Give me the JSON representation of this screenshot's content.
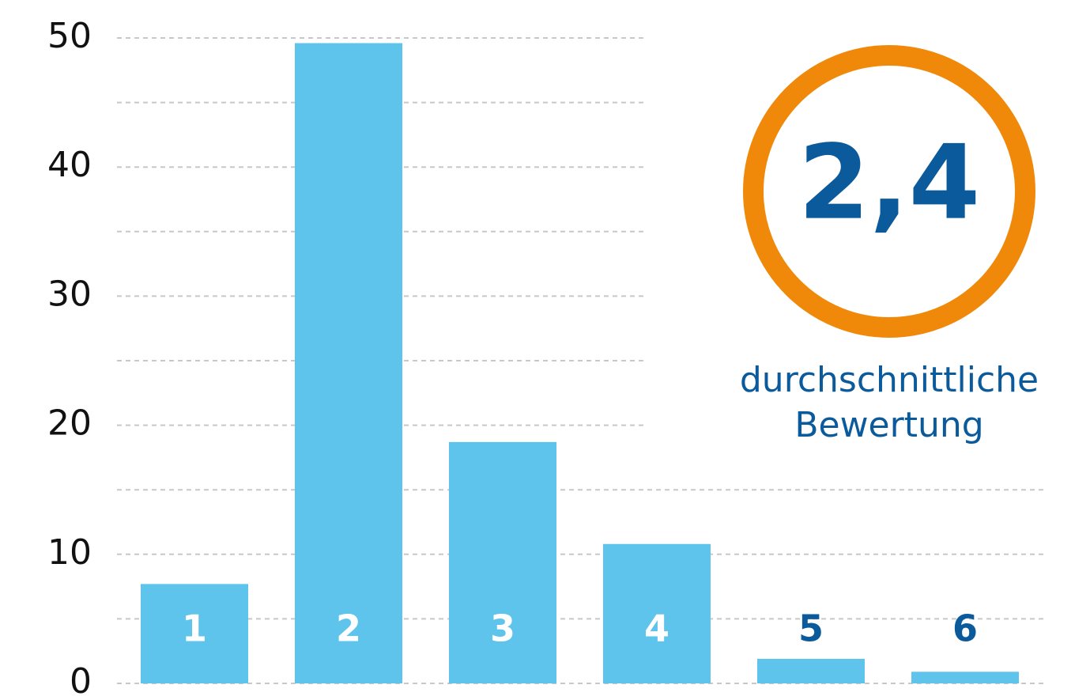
{
  "chart_data": {
    "type": "bar",
    "categories": [
      "1",
      "2",
      "3",
      "4",
      "5",
      "6"
    ],
    "values": [
      7.7,
      49.6,
      18.7,
      10.8,
      1.9,
      0.9
    ],
    "color": "#5fc4ec",
    "ylim": [
      0,
      50
    ],
    "yticks": [
      0,
      10,
      20,
      30,
      40,
      50
    ],
    "minor_yticks": [
      5,
      15,
      25,
      35,
      45
    ],
    "grid": true,
    "annotation": {
      "text": "2,4",
      "label": [
        "durchschnittliche",
        "Bewertung"
      ],
      "ring_color": "#f0890a",
      "text_color": "#0a5a9c"
    }
  }
}
